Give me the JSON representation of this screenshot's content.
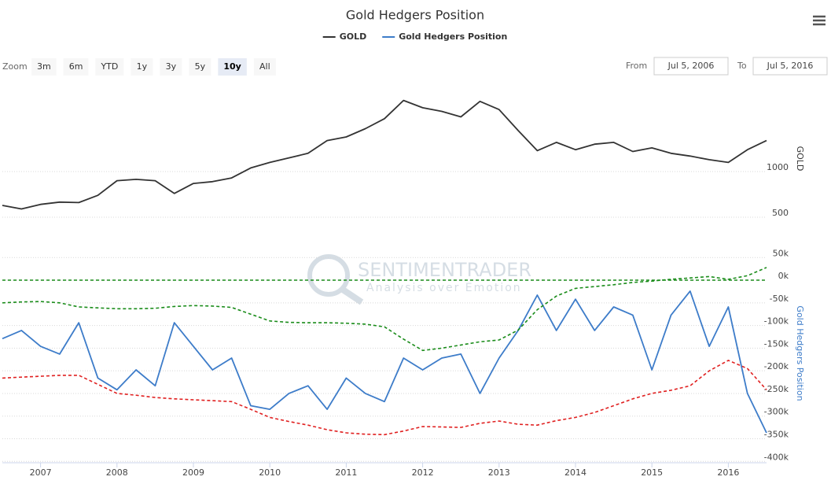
{
  "chart_data": [
    {
      "type": "line",
      "title": "Gold Hedgers Position",
      "y_label": "GOLD",
      "x": [
        2006.5,
        2006.75,
        2007,
        2007.25,
        2007.5,
        2007.75,
        2008,
        2008.25,
        2008.5,
        2008.75,
        2009,
        2009.25,
        2009.5,
        2009.75,
        2010,
        2010.25,
        2010.5,
        2010.75,
        2011,
        2011.25,
        2011.5,
        2011.75,
        2012,
        2012.25,
        2012.5,
        2012.75,
        2013,
        2013.25,
        2013.5,
        2013.75,
        2014,
        2014.25,
        2014.5,
        2014.75,
        2015,
        2015.25,
        2015.5,
        2015.75,
        2016,
        2016.25,
        2016.5
      ],
      "xlim": [
        2006.5,
        2016.5
      ],
      "ylim": [
        310,
        1975
      ],
      "yticks": [
        500,
        1000
      ],
      "grid": true,
      "series": [
        {
          "name": "GOLD",
          "color": "#333333",
          "values": [
            629,
            590,
            640,
            665,
            660,
            740,
            900,
            915,
            900,
            760,
            870,
            890,
            930,
            1040,
            1100,
            1150,
            1200,
            1340,
            1380,
            1470,
            1580,
            1780,
            1700,
            1660,
            1600,
            1770,
            1680,
            1450,
            1230,
            1320,
            1240,
            1300,
            1320,
            1220,
            1260,
            1200,
            1170,
            1130,
            1100,
            1240,
            1340
          ]
        }
      ]
    },
    {
      "type": "line",
      "y_label": "Gold Hedgers Position",
      "x": [
        2006.5,
        2006.75,
        2007,
        2007.25,
        2007.5,
        2007.75,
        2008,
        2008.25,
        2008.5,
        2008.75,
        2009,
        2009.25,
        2009.5,
        2009.75,
        2010,
        2010.25,
        2010.5,
        2010.75,
        2011,
        2011.25,
        2011.5,
        2011.75,
        2012,
        2012.25,
        2012.5,
        2012.75,
        2013,
        2013.25,
        2013.5,
        2013.75,
        2014,
        2014.25,
        2014.5,
        2014.75,
        2015,
        2015.25,
        2015.5,
        2015.75,
        2016,
        2016.25,
        2016.5
      ],
      "xlim": [
        2006.5,
        2016.5
      ],
      "xticks": [
        2007,
        2008,
        2009,
        2010,
        2011,
        2012,
        2013,
        2014,
        2015,
        2016
      ],
      "ylim": [
        -403000,
        80000
      ],
      "yticks": [
        {
          "value": 50000,
          "label": "50k"
        },
        {
          "value": 0,
          "label": "0k"
        },
        {
          "value": -50000,
          "label": "-50k"
        },
        {
          "value": -100000,
          "label": "-100k"
        },
        {
          "value": -150000,
          "label": "-150k"
        },
        {
          "value": -200000,
          "label": "-200k"
        },
        {
          "value": -250000,
          "label": "-250k"
        },
        {
          "value": -300000,
          "label": "-300k"
        },
        {
          "value": -350000,
          "label": "-350k"
        },
        {
          "value": -400000,
          "label": "-400k"
        }
      ],
      "grid": true,
      "plot_lines": [
        {
          "value": 0,
          "color": "#1a8c1a"
        }
      ],
      "series": [
        {
          "name": "Gold Hedgers Position",
          "color": "#3d7cc9",
          "values": [
            -129000,
            -111000,
            -146000,
            -163000,
            -94000,
            -216000,
            -242000,
            -198000,
            -233000,
            -94000,
            -146000,
            -198000,
            -172000,
            -277000,
            -285000,
            -250000,
            -233000,
            -285000,
            -216000,
            -250000,
            -268000,
            -172000,
            -198000,
            -172000,
            -163000,
            -250000,
            -172000,
            -111000,
            -33000,
            -111000,
            -42000,
            -111000,
            -59000,
            -77000,
            -198000,
            -77000,
            -24000,
            -146000,
            -59000,
            -250000,
            -337000
          ]
        },
        {
          "color": "#1a8c1a",
          "dashed": true,
          "values": [
            -50000,
            -48000,
            -47000,
            -50000,
            -59000,
            -61000,
            -63000,
            -63000,
            -62000,
            -58000,
            -56000,
            -57000,
            -60000,
            -75000,
            -90000,
            -93000,
            -94000,
            -94000,
            -95000,
            -97000,
            -103000,
            -130000,
            -155000,
            -150000,
            -143000,
            -136000,
            -132000,
            -110000,
            -65000,
            -35000,
            -18000,
            -14000,
            -10000,
            -5000,
            -2000,
            2000,
            5000,
            8000,
            2000,
            10000,
            28000
          ]
        },
        {
          "color": "#e02020",
          "dashed": true,
          "values": [
            -216000,
            -214000,
            -212000,
            -210000,
            -210000,
            -230000,
            -250000,
            -254000,
            -259000,
            -262000,
            -264000,
            -266000,
            -268000,
            -285000,
            -303000,
            -312000,
            -320000,
            -330000,
            -337000,
            -340000,
            -341000,
            -333000,
            -323000,
            -324000,
            -325000,
            -316000,
            -311000,
            -318000,
            -320000,
            -310000,
            -303000,
            -292000,
            -277000,
            -262000,
            -250000,
            -243000,
            -233000,
            -200000,
            -177000,
            -195000,
            -242000
          ]
        }
      ]
    }
  ],
  "range_selector": {
    "zoom_label": "Zoom",
    "buttons": [
      "3m",
      "6m",
      "YTD",
      "1y",
      "3y",
      "5y",
      "10y",
      "All"
    ],
    "selected": 6,
    "from_label": "From",
    "from": "Jul 5, 2006",
    "to_label": "To",
    "to": "Jul 5, 2016"
  },
  "watermark": {
    "brand": "SENTIMENTRADER",
    "tagline": "Analysis over Emotion"
  }
}
